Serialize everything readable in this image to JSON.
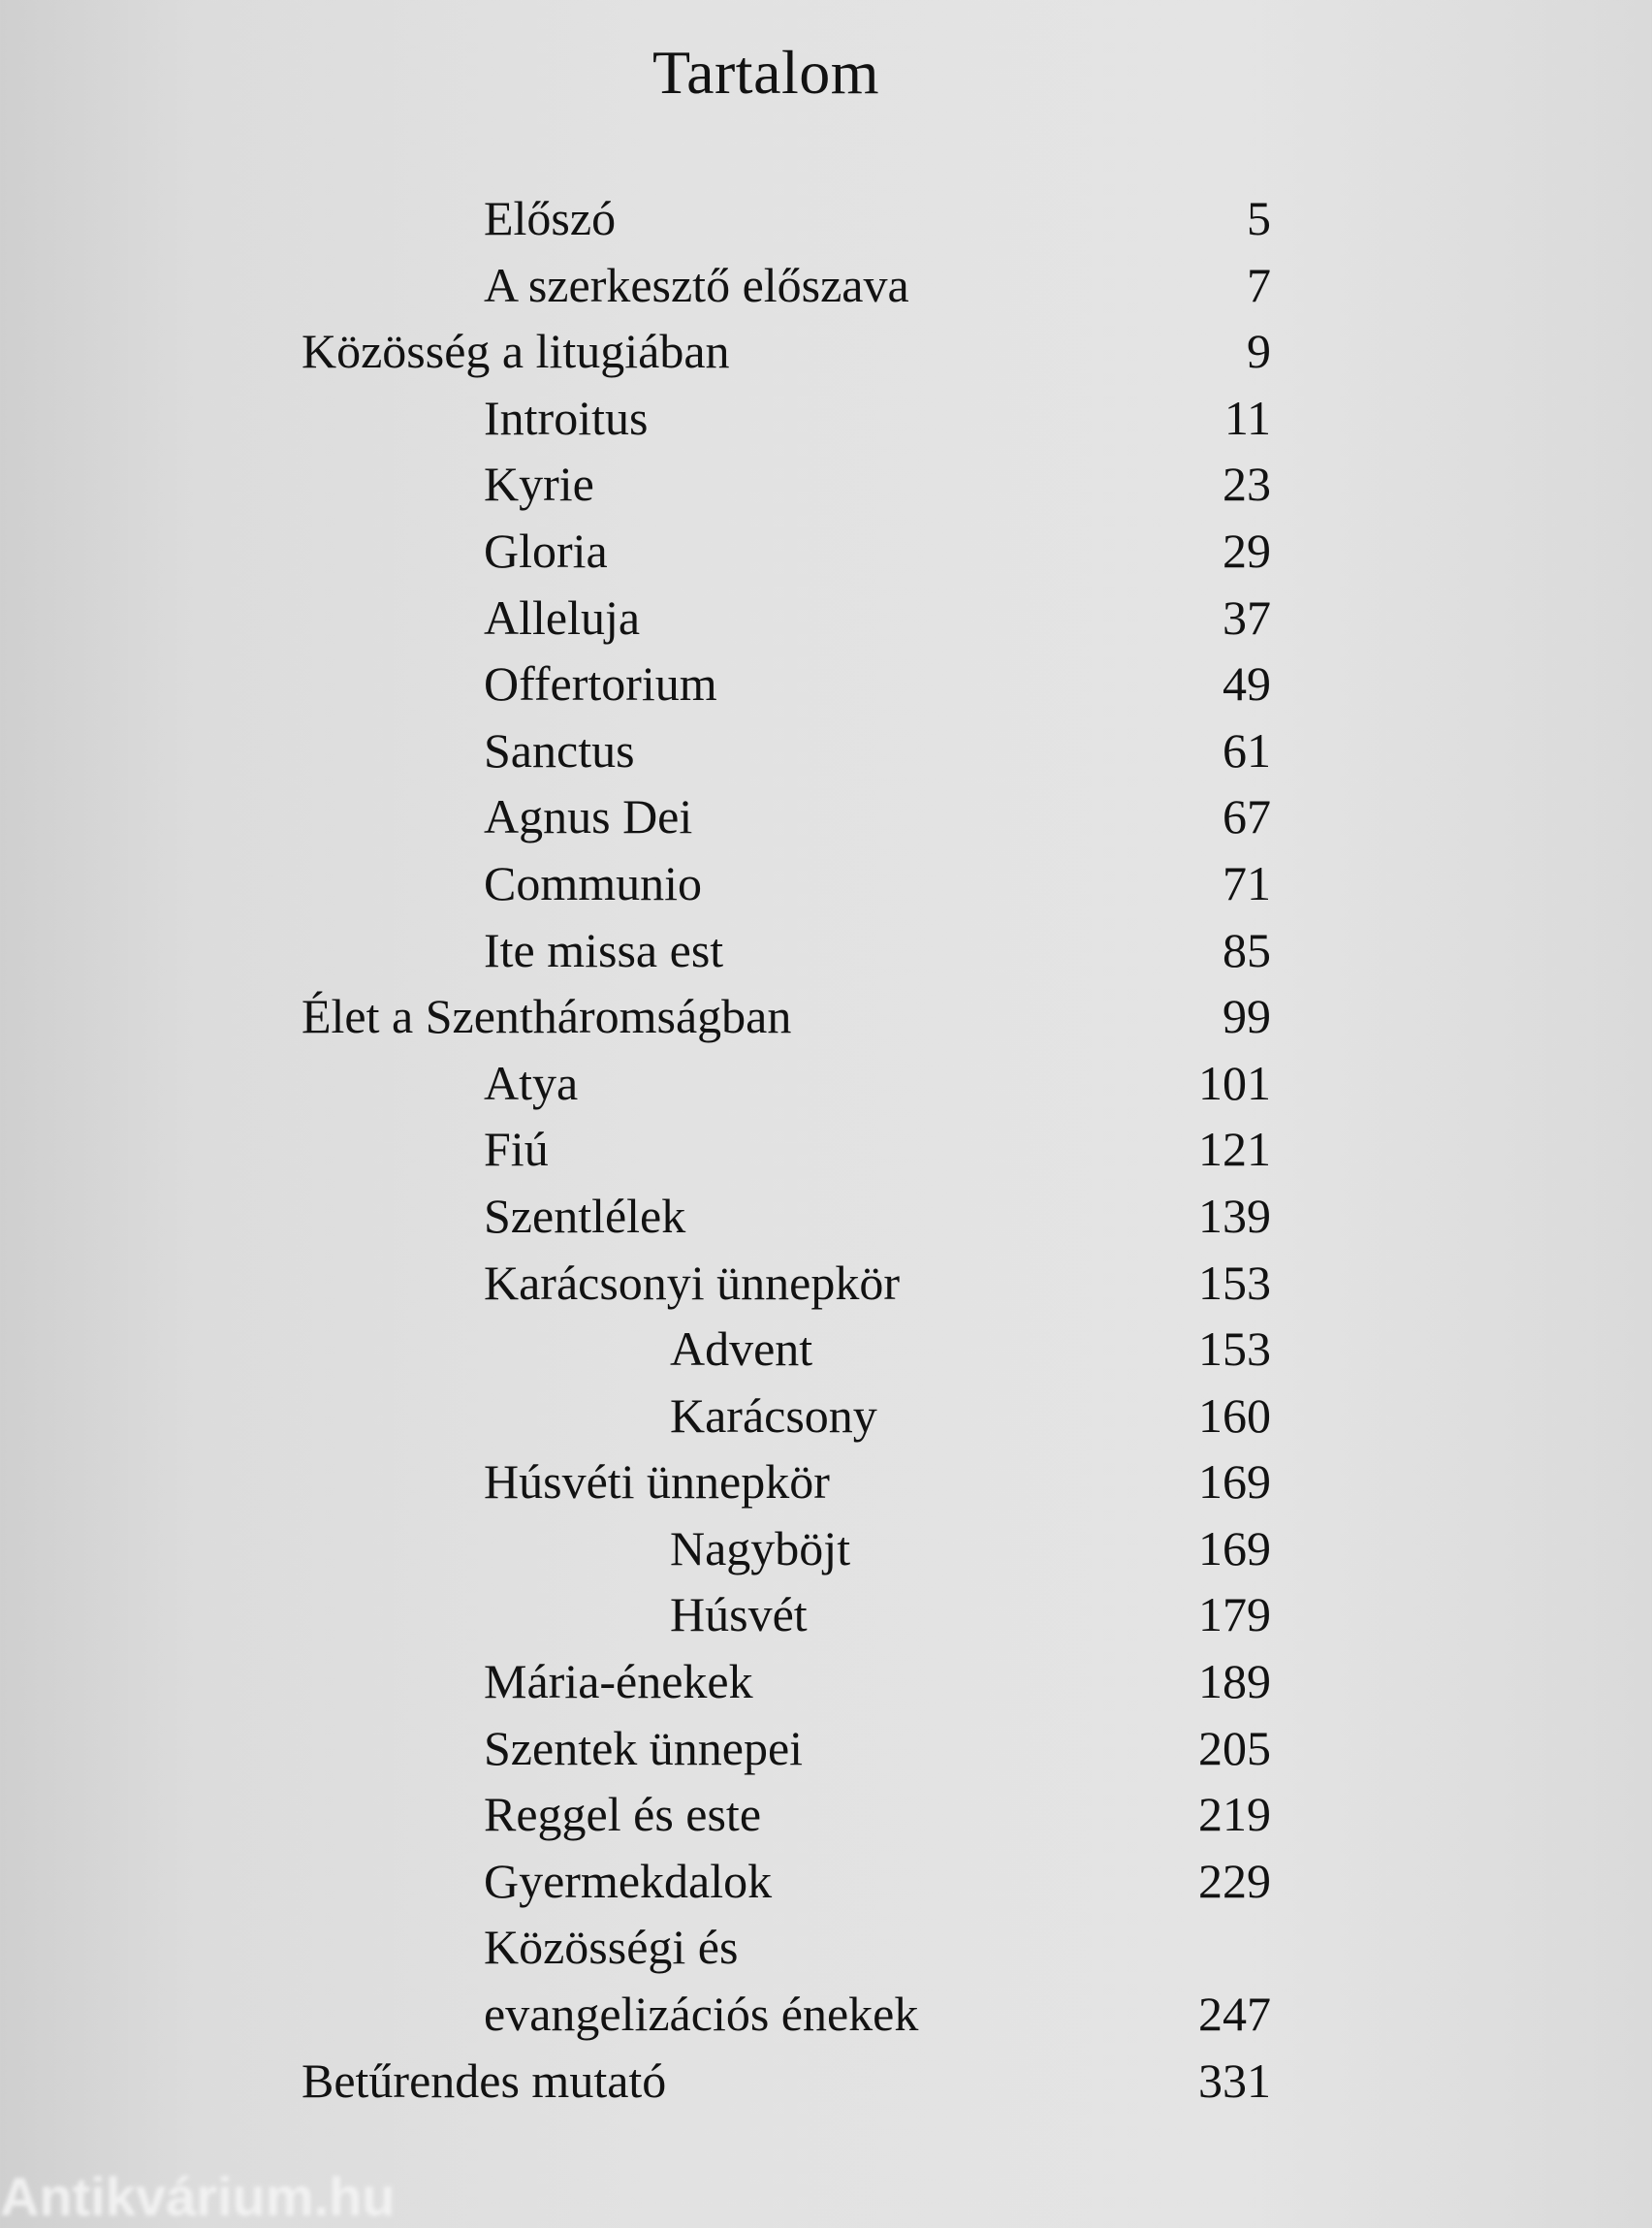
{
  "title": "Tartalom",
  "entries": [
    {
      "label": "Előszó",
      "page": "5",
      "level": 1
    },
    {
      "label": "A szerkesztő előszava",
      "page": "7",
      "level": 1
    },
    {
      "label": "Közösség a litugiában",
      "page": "9",
      "level": 0
    },
    {
      "label": "Introitus",
      "page": "11",
      "level": 1
    },
    {
      "label": "Kyrie",
      "page": "23",
      "level": 1
    },
    {
      "label": "Gloria",
      "page": "29",
      "level": 1
    },
    {
      "label": "Alleluja",
      "page": "37",
      "level": 1
    },
    {
      "label": "Offertorium",
      "page": "49",
      "level": 1
    },
    {
      "label": "Sanctus",
      "page": "61",
      "level": 1
    },
    {
      "label": "Agnus Dei",
      "page": "67",
      "level": 1
    },
    {
      "label": "Communio",
      "page": "71",
      "level": 1
    },
    {
      "label": "Ite missa est",
      "page": "85",
      "level": 1
    },
    {
      "label": "Élet a Szentháromságban",
      "page": "99",
      "level": 0
    },
    {
      "label": "Atya",
      "page": "101",
      "level": 1
    },
    {
      "label": "Fiú",
      "page": "121",
      "level": 1
    },
    {
      "label": "Szentlélek",
      "page": "139",
      "level": 1
    },
    {
      "label": "Karácsonyi ünnepkör",
      "page": "153",
      "level": 1
    },
    {
      "label": "Advent",
      "page": "153",
      "level": 2
    },
    {
      "label": "Karácsony",
      "page": "160",
      "level": 2
    },
    {
      "label": "Húsvéti ünnepkör",
      "page": "169",
      "level": 1
    },
    {
      "label": "Nagyböjt",
      "page": "169",
      "level": 2
    },
    {
      "label": "Húsvét",
      "page": "179",
      "level": 2
    },
    {
      "label": "Mária-énekek",
      "page": "189",
      "level": 1
    },
    {
      "label": "Szentek ünnepei",
      "page": "205",
      "level": 1
    },
    {
      "label": "Reggel és este",
      "page": "219",
      "level": 1
    },
    {
      "label": "Gyermekdalok",
      "page": "229",
      "level": 1
    },
    {
      "label": "Közösségi és",
      "page": "",
      "level": 1
    },
    {
      "label": "evangelizációs énekek",
      "page": "247",
      "level": 1
    },
    {
      "label": "Betűrendes mutató",
      "page": "331",
      "level": 0
    }
  ],
  "watermark": "Antikvárium.hu"
}
